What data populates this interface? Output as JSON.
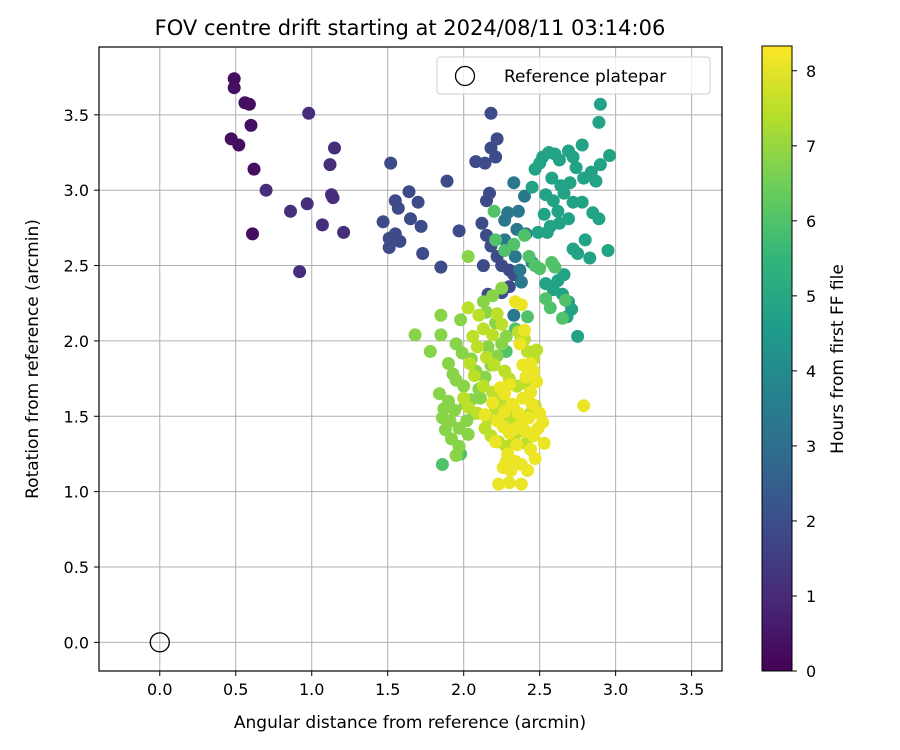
{
  "chart_data": {
    "type": "scatter",
    "title": "FOV centre drift starting at 2024/08/11 03:14:06",
    "xlabel": "Angular distance from reference (arcmin)",
    "ylabel": "Rotation from reference (arcmin)",
    "xlim": [
      -0.4,
      3.7
    ],
    "ylim": [
      -0.19,
      3.95
    ],
    "x_ticks": [
      0.0,
      0.5,
      1.0,
      1.5,
      2.0,
      2.5,
      3.0,
      3.5
    ],
    "x_tick_labels": [
      "0.0",
      "0.5",
      "1.0",
      "1.5",
      "2.0",
      "2.5",
      "3.0",
      "3.5"
    ],
    "y_ticks": [
      0.0,
      0.5,
      1.0,
      1.5,
      2.0,
      2.5,
      3.0,
      3.5
    ],
    "y_tick_labels": [
      "0.0",
      "0.5",
      "1.0",
      "1.5",
      "2.0",
      "2.5",
      "3.0",
      "3.5"
    ],
    "grid": true,
    "legend": {
      "position": "top-right",
      "entries": [
        {
          "label": "Reference platepar",
          "marker": "open-circle"
        }
      ]
    },
    "colorbar": {
      "label": "Hours from first FF file",
      "colormap": "viridis",
      "range": [
        0,
        8.33
      ],
      "ticks": [
        0,
        1,
        2,
        3,
        4,
        5,
        6,
        7,
        8
      ],
      "tick_labels": [
        "0",
        "1",
        "2",
        "3",
        "4",
        "5",
        "6",
        "7",
        "8"
      ]
    },
    "reference_point": {
      "x": 0.0,
      "y": 0.0
    },
    "colors": {
      "viridis": [
        "#440154",
        "#482878",
        "#3e4989",
        "#31688e",
        "#26828e",
        "#1f9e89",
        "#35b779",
        "#6ece58",
        "#b5de2b",
        "#fde725"
      ]
    },
    "point_groups": [
      {
        "hours": 0.3,
        "points": [
          [
            0.49,
            3.74
          ],
          [
            0.49,
            3.68
          ],
          [
            0.56,
            3.58
          ],
          [
            0.59,
            3.57
          ],
          [
            0.47,
            3.34
          ],
          [
            0.6,
            3.43
          ],
          [
            0.52,
            3.3
          ],
          [
            0.62,
            3.14
          ],
          [
            0.61,
            2.71
          ]
        ]
      },
      {
        "hours": 1.1,
        "points": [
          [
            0.98,
            3.51
          ],
          [
            0.7,
            3.0
          ],
          [
            0.86,
            2.86
          ],
          [
            0.97,
            2.91
          ],
          [
            1.13,
            2.97
          ],
          [
            1.14,
            2.95
          ],
          [
            1.07,
            2.77
          ],
          [
            1.21,
            2.72
          ],
          [
            1.15,
            3.28
          ],
          [
            1.12,
            3.17
          ],
          [
            0.92,
            2.46
          ]
        ]
      },
      {
        "hours": 1.9,
        "points": [
          [
            1.52,
            3.18
          ],
          [
            1.47,
            2.79
          ],
          [
            1.55,
            2.93
          ],
          [
            1.57,
            2.88
          ],
          [
            1.64,
            2.99
          ],
          [
            1.7,
            2.92
          ],
          [
            1.65,
            2.81
          ],
          [
            1.72,
            2.76
          ],
          [
            1.51,
            2.68
          ],
          [
            1.51,
            2.62
          ],
          [
            1.58,
            2.66
          ],
          [
            1.55,
            2.71
          ],
          [
            1.73,
            2.58
          ],
          [
            1.85,
            2.49
          ],
          [
            1.89,
            3.06
          ],
          [
            1.97,
            2.73
          ],
          [
            2.08,
            3.19
          ],
          [
            2.14,
            3.18
          ],
          [
            2.18,
            3.28
          ],
          [
            2.22,
            3.34
          ],
          [
            2.18,
            3.51
          ],
          [
            2.15,
            2.93
          ],
          [
            2.17,
            2.98
          ],
          [
            2.12,
            2.78
          ],
          [
            2.15,
            2.7
          ],
          [
            2.18,
            2.63
          ],
          [
            2.22,
            2.56
          ],
          [
            2.13,
            2.5
          ],
          [
            2.25,
            2.5
          ],
          [
            2.3,
            2.47
          ],
          [
            2.33,
            2.44
          ],
          [
            2.25,
            2.32
          ],
          [
            2.3,
            2.36
          ],
          [
            2.16,
            2.31
          ],
          [
            2.21,
            3.22
          ]
        ]
      },
      {
        "hours": 3.3,
        "points": [
          [
            2.33,
            3.05
          ],
          [
            2.4,
            2.96
          ],
          [
            2.36,
            2.86
          ],
          [
            2.35,
            2.74
          ],
          [
            2.29,
            2.85
          ],
          [
            2.3,
            2.62
          ],
          [
            2.34,
            2.56
          ],
          [
            2.37,
            2.47
          ],
          [
            2.38,
            2.39
          ],
          [
            2.33,
            2.17
          ],
          [
            2.27,
            2.8
          ],
          [
            2.41,
            2.71
          ],
          [
            2.27,
            2.67
          ],
          [
            2.45,
            2.52
          ]
        ]
      },
      {
        "hours": 4.8,
        "points": [
          [
            2.52,
            3.22
          ],
          [
            2.56,
            3.25
          ],
          [
            2.6,
            3.24
          ],
          [
            2.63,
            3.2
          ],
          [
            2.69,
            3.26
          ],
          [
            2.72,
            3.22
          ],
          [
            2.78,
            3.3
          ],
          [
            2.47,
            3.14
          ],
          [
            2.5,
            3.18
          ],
          [
            2.58,
            3.08
          ],
          [
            2.64,
            3.03
          ],
          [
            2.7,
            3.05
          ],
          [
            2.74,
            3.15
          ],
          [
            2.79,
            3.08
          ],
          [
            2.84,
            3.12
          ],
          [
            2.9,
            3.17
          ],
          [
            2.96,
            3.23
          ],
          [
            2.87,
            3.06
          ],
          [
            2.89,
            3.45
          ],
          [
            2.9,
            3.57
          ],
          [
            2.54,
            2.97
          ],
          [
            2.59,
            2.93
          ],
          [
            2.66,
            2.98
          ],
          [
            2.72,
            2.92
          ],
          [
            2.78,
            2.92
          ],
          [
            2.53,
            2.84
          ],
          [
            2.57,
            2.76
          ],
          [
            2.63,
            2.78
          ],
          [
            2.69,
            2.81
          ],
          [
            2.85,
            2.85
          ],
          [
            2.89,
            2.81
          ],
          [
            2.49,
            2.72
          ],
          [
            2.55,
            2.72
          ],
          [
            2.72,
            2.61
          ],
          [
            2.75,
            2.58
          ],
          [
            2.8,
            2.67
          ],
          [
            2.83,
            2.55
          ],
          [
            2.95,
            2.6
          ],
          [
            2.54,
            2.38
          ],
          [
            2.59,
            2.34
          ],
          [
            2.62,
            2.4
          ],
          [
            2.66,
            2.44
          ],
          [
            2.65,
            2.31
          ],
          [
            2.69,
            2.26
          ],
          [
            2.71,
            2.21
          ],
          [
            2.68,
            2.16
          ],
          [
            2.75,
            2.03
          ],
          [
            2.45,
            3.02
          ],
          [
            2.62,
            2.86
          ]
        ]
      },
      {
        "hours": 6.0,
        "points": [
          [
            2.2,
            2.86
          ],
          [
            2.21,
            2.67
          ],
          [
            2.27,
            2.6
          ],
          [
            2.33,
            2.64
          ],
          [
            2.4,
            2.7
          ],
          [
            2.43,
            2.56
          ],
          [
            2.47,
            2.5
          ],
          [
            2.5,
            2.48
          ],
          [
            2.58,
            2.52
          ],
          [
            2.6,
            2.49
          ],
          [
            2.54,
            2.28
          ],
          [
            2.57,
            2.22
          ],
          [
            2.67,
            2.27
          ],
          [
            2.65,
            2.15
          ],
          [
            2.42,
            2.16
          ],
          [
            2.34,
            2.08
          ],
          [
            2.38,
            2.02
          ],
          [
            2.28,
            1.93
          ],
          [
            1.86,
            1.18
          ],
          [
            1.98,
            1.25
          ]
        ]
      },
      {
        "hours": 6.8,
        "points": [
          [
            2.03,
            2.56
          ],
          [
            1.68,
            2.04
          ],
          [
            1.78,
            1.93
          ],
          [
            1.85,
            2.17
          ],
          [
            1.85,
            2.04
          ],
          [
            1.9,
            1.85
          ],
          [
            1.93,
            1.78
          ],
          [
            1.84,
            1.65
          ],
          [
            1.87,
            1.55
          ],
          [
            1.88,
            1.41
          ],
          [
            1.92,
            1.35
          ],
          [
            1.97,
            1.3
          ],
          [
            1.95,
            1.24
          ],
          [
            2.02,
            1.47
          ],
          [
            2.05,
            1.61
          ],
          [
            2.1,
            1.68
          ],
          [
            2.14,
            1.76
          ],
          [
            2.18,
            1.84
          ],
          [
            2.22,
            1.9
          ],
          [
            2.25,
            1.98
          ],
          [
            2.28,
            2.03
          ],
          [
            2.21,
            2.12
          ],
          [
            2.15,
            2.19
          ],
          [
            2.13,
            2.26
          ],
          [
            2.19,
            2.3
          ],
          [
            2.25,
            2.35
          ],
          [
            1.95,
            1.98
          ],
          [
            1.99,
            1.92
          ],
          [
            2.05,
            1.88
          ],
          [
            1.95,
            1.74
          ],
          [
            2.0,
            1.7
          ],
          [
            2.08,
            1.8
          ],
          [
            1.9,
            1.6
          ],
          [
            1.94,
            1.54
          ],
          [
            2.01,
            1.58
          ],
          [
            1.86,
            1.49
          ],
          [
            1.91,
            1.47
          ],
          [
            1.97,
            1.42
          ],
          [
            2.03,
            1.38
          ],
          [
            2.07,
            1.52
          ],
          [
            2.11,
            1.62
          ],
          [
            2.16,
            1.96
          ],
          [
            1.98,
            2.14
          ]
        ]
      },
      {
        "hours": 7.5,
        "points": [
          [
            2.03,
            2.22
          ],
          [
            2.1,
            2.17
          ],
          [
            2.13,
            2.08
          ],
          [
            2.19,
            2.04
          ],
          [
            2.22,
            2.18
          ],
          [
            2.25,
            2.11
          ],
          [
            2.06,
            2.03
          ],
          [
            2.09,
            1.96
          ],
          [
            2.15,
            1.89
          ],
          [
            2.2,
            1.84
          ],
          [
            2.27,
            1.8
          ],
          [
            2.3,
            1.75
          ],
          [
            2.35,
            1.7
          ],
          [
            2.4,
            1.72
          ],
          [
            2.04,
            1.85
          ],
          [
            2.07,
            1.77
          ],
          [
            2.13,
            1.7
          ],
          [
            2.19,
            1.66
          ],
          [
            2.24,
            1.62
          ],
          [
            2.28,
            1.58
          ],
          [
            2.33,
            1.55
          ],
          [
            2.0,
            1.62
          ],
          [
            2.03,
            1.56
          ],
          [
            2.09,
            1.52
          ],
          [
            2.16,
            1.48
          ],
          [
            2.21,
            1.55
          ],
          [
            2.26,
            1.5
          ],
          [
            2.31,
            1.47
          ],
          [
            2.36,
            1.44
          ],
          [
            2.4,
            1.48
          ],
          [
            2.44,
            1.52
          ],
          [
            2.47,
            1.57
          ],
          [
            2.14,
            1.42
          ],
          [
            2.18,
            1.37
          ],
          [
            2.23,
            1.33
          ],
          [
            2.28,
            1.3
          ],
          [
            2.33,
            1.35
          ],
          [
            2.37,
            1.4
          ],
          [
            2.41,
            1.32
          ],
          [
            2.36,
            2.06
          ],
          [
            2.4,
            2.01
          ],
          [
            2.42,
            1.93
          ],
          [
            2.46,
            1.88
          ],
          [
            2.48,
            1.94
          ]
        ]
      },
      {
        "hours": 8.1,
        "points": [
          [
            2.34,
            2.26
          ],
          [
            2.38,
            2.24
          ],
          [
            2.4,
            2.07
          ],
          [
            2.37,
            1.98
          ],
          [
            2.44,
            1.85
          ],
          [
            2.46,
            1.8
          ],
          [
            2.41,
            1.76
          ],
          [
            2.48,
            1.73
          ],
          [
            2.44,
            1.66
          ],
          [
            2.39,
            1.62
          ],
          [
            2.45,
            1.58
          ],
          [
            2.5,
            1.52
          ],
          [
            2.43,
            1.49
          ],
          [
            2.38,
            1.45
          ],
          [
            2.34,
            1.42
          ],
          [
            2.3,
            1.39
          ],
          [
            2.26,
            1.43
          ],
          [
            2.22,
            1.47
          ],
          [
            2.27,
            1.53
          ],
          [
            2.32,
            1.58
          ],
          [
            2.36,
            1.52
          ],
          [
            2.41,
            1.4
          ],
          [
            2.46,
            1.37
          ],
          [
            2.49,
            1.42
          ],
          [
            2.52,
            1.46
          ],
          [
            2.29,
            1.25
          ],
          [
            2.34,
            1.2
          ],
          [
            2.38,
            1.18
          ],
          [
            2.31,
            1.14
          ],
          [
            2.26,
            1.16
          ],
          [
            2.23,
            1.05
          ],
          [
            2.3,
            1.06
          ],
          [
            2.38,
            1.05
          ],
          [
            2.42,
            1.14
          ],
          [
            2.47,
            1.22
          ],
          [
            2.53,
            1.32
          ],
          [
            2.79,
            1.57
          ],
          [
            2.14,
            1.51
          ],
          [
            2.19,
            1.59
          ],
          [
            2.24,
            1.69
          ],
          [
            2.3,
            1.71
          ],
          [
            2.27,
            1.65
          ],
          [
            2.21,
            1.33
          ],
          [
            2.39,
            1.84
          ],
          [
            2.44,
            1.28
          ],
          [
            2.35,
            1.31
          ],
          [
            2.28,
            1.2
          ]
        ]
      }
    ]
  }
}
